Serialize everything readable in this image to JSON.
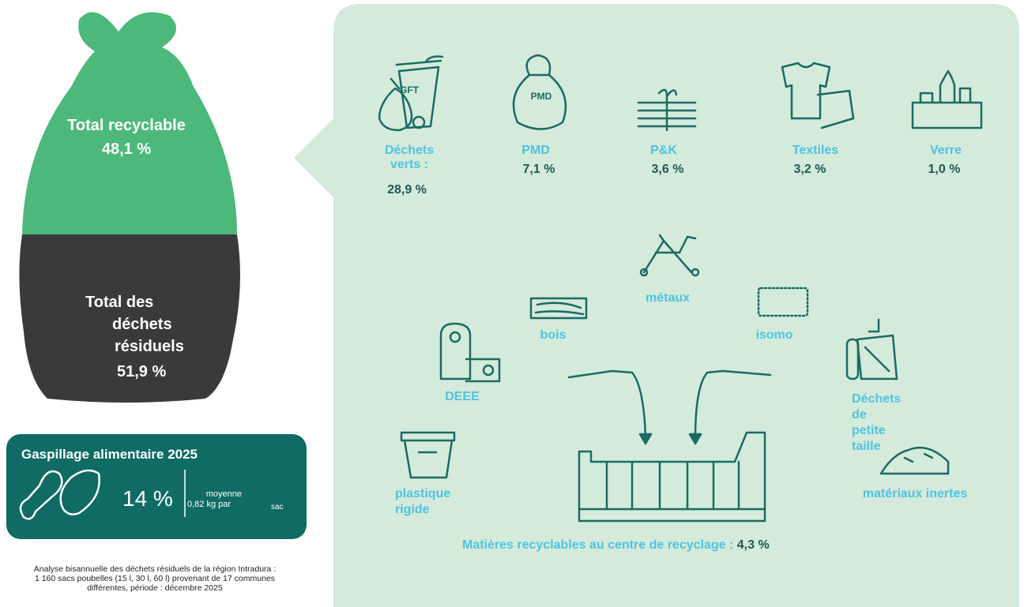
{
  "bag": {
    "recyclable_label": "Total recyclable",
    "recyclable_value": "48,1 %",
    "residual_lines": [
      "Total des",
      "déchets",
      "résiduels"
    ],
    "residual_value": "51,9 %"
  },
  "food_waste": {
    "title": "Gaspillage alimentaire 2025",
    "value": "14 %",
    "average_label": "moyenne",
    "average_value": "0,82 kg par",
    "unit": "sac"
  },
  "source_note": [
    "Analyse bisannuelle des déchets résiduels de la région Intradura :",
    "1 160 sacs poubelles (15 l, 30 l, 60 l) provenant de 17 communes",
    "différentes, période : décembre 2025"
  ],
  "categories": [
    {
      "label": "Déchets verts :",
      "value": "28,9 %"
    },
    {
      "label": "PMD",
      "value": "7,1 %"
    },
    {
      "label": "P&K",
      "value": "3,6 %"
    },
    {
      "label": "Textiles",
      "value": "3,2 %"
    },
    {
      "label": "Verre",
      "value": "1,0 %"
    }
  ],
  "icon_texts": {
    "gft": "GFT",
    "pmd": "PMD"
  },
  "recycling_center": {
    "items": [
      "métaux",
      "bois",
      "isomo",
      "DEEE",
      "Déchets de petite taille",
      "plastique rigide",
      "matériaux inertes"
    ],
    "footer_label": "Matières recyclables au centre de recyclage :",
    "footer_value": "4,3 %"
  }
}
